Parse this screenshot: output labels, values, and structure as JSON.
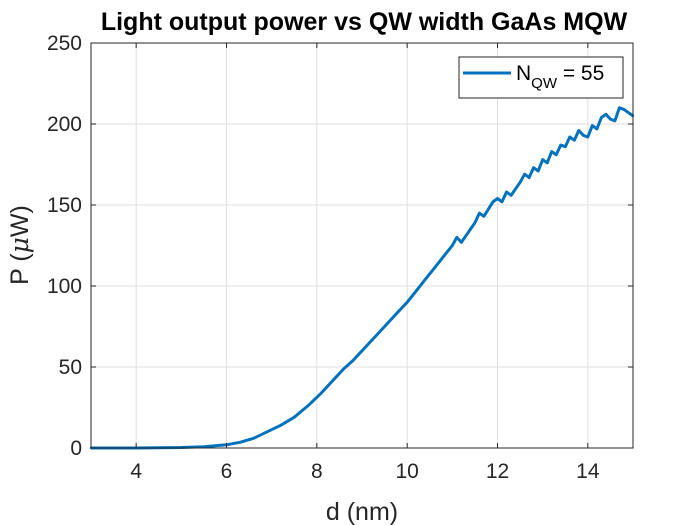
{
  "chart_data": {
    "type": "line",
    "title": "Light output power vs QW width GaAs MQW",
    "xlabel": "d (nm)",
    "ylabel_main": "P (",
    "ylabel_symbol": "μ",
    "ylabel_unit": "W)",
    "xlim": [
      3,
      15
    ],
    "ylim": [
      0,
      250
    ],
    "xticks": [
      4,
      6,
      8,
      10,
      12,
      14
    ],
    "yticks": [
      0,
      50,
      100,
      150,
      200,
      250
    ],
    "grid": true,
    "legend_position": "top-right",
    "legend": {
      "base": "N",
      "subscript": "QW",
      "suffix": " = 55"
    },
    "series": [
      {
        "color": "#0072bd",
        "x": [
          3.0,
          4.0,
          5.0,
          5.5,
          6.0,
          6.3,
          6.6,
          6.9,
          7.2,
          7.5,
          7.8,
          8.1,
          8.4,
          8.6,
          8.8,
          9.0,
          9.2,
          9.4,
          9.6,
          9.8,
          10.0,
          10.2,
          10.4,
          10.6,
          10.8,
          11.0,
          11.1,
          11.2,
          11.4,
          11.5,
          11.6,
          11.7,
          11.9,
          12.0,
          12.1,
          12.2,
          12.3,
          12.5,
          12.6,
          12.7,
          12.8,
          12.9,
          13.0,
          13.1,
          13.2,
          13.3,
          13.4,
          13.5,
          13.6,
          13.7,
          13.8,
          13.9,
          14.0,
          14.1,
          14.2,
          14.3,
          14.4,
          14.5,
          14.6,
          14.7,
          14.8,
          14.9,
          15.0
        ],
        "y": [
          0,
          0,
          0.3,
          0.8,
          2,
          3.5,
          6,
          10,
          14,
          19,
          26,
          34,
          43,
          49,
          54,
          60,
          66,
          72,
          78,
          84,
          90,
          97,
          104,
          111,
          118,
          125,
          130,
          127,
          135,
          139,
          145,
          143,
          152,
          154,
          152,
          158,
          156,
          164,
          169,
          167,
          173,
          171,
          178,
          176,
          183,
          181,
          187,
          186,
          192,
          190,
          196,
          193,
          192,
          199,
          197,
          204,
          206,
          203,
          202,
          210,
          209,
          207,
          205
        ]
      }
    ]
  }
}
